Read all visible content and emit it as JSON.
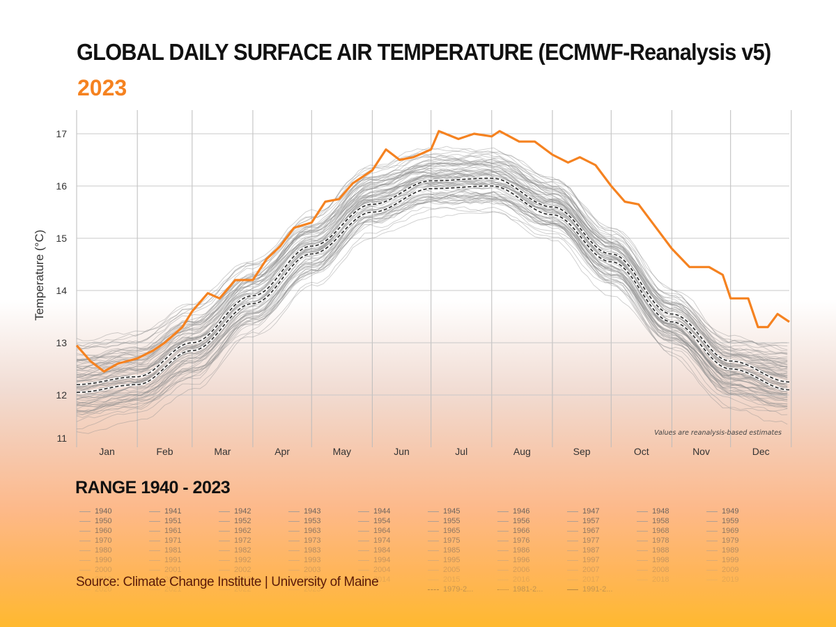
{
  "header": {
    "title": "GLOBAL DAILY SURFACE AIR TEMPERATURE (ECMWF-Reanalysis v5)",
    "subtitle": "2023"
  },
  "range_label": "RANGE 1940 - 2023",
  "source": "Source: Climate Change Institute  | University of Maine",
  "colors": {
    "highlight": "#f58220",
    "history": "#9a9a9a",
    "mean": "#222222"
  },
  "chart_data": {
    "type": "line",
    "ylabel": "Temperature (°C)",
    "xlabel": "",
    "ylim": [
      11,
      17.45
    ],
    "yticks": [
      11,
      12,
      13,
      14,
      15,
      16,
      17
    ],
    "xticks": [
      "Jan",
      "Feb",
      "Mar",
      "Apr",
      "May",
      "Jun",
      "Jul",
      "Aug",
      "Sep",
      "Oct",
      "Nov",
      "Dec"
    ],
    "grid": true,
    "annotation": "Values are reanalysis-based estimates",
    "series": [
      {
        "name": "2023",
        "color": "#f58220",
        "day": [
          1,
          8,
          15,
          22,
          32,
          40,
          46,
          55,
          60,
          68,
          74,
          82,
          91,
          98,
          105,
          112,
          121,
          128,
          135,
          142,
          152,
          159,
          166,
          173,
          182,
          186,
          196,
          204,
          213,
          217,
          227,
          235,
          244,
          252,
          258,
          266,
          274,
          281,
          288,
          296,
          305,
          314,
          324,
          331,
          335,
          344,
          349,
          354,
          359,
          365
        ],
        "values": [
          12.95,
          12.65,
          12.45,
          12.6,
          12.7,
          12.85,
          13.0,
          13.3,
          13.6,
          13.95,
          13.85,
          14.2,
          14.2,
          14.6,
          14.85,
          15.2,
          15.3,
          15.7,
          15.75,
          16.05,
          16.3,
          16.7,
          16.5,
          16.55,
          16.7,
          17.05,
          16.9,
          17.0,
          16.95,
          17.05,
          16.85,
          16.85,
          16.6,
          16.45,
          16.55,
          16.4,
          16.0,
          15.7,
          15.65,
          15.25,
          14.8,
          14.45,
          14.45,
          14.3,
          13.85,
          13.85,
          13.3,
          13.3,
          13.55,
          13.4
        ]
      },
      {
        "name": "1979-2...",
        "style": "dashed",
        "day": [
          1,
          32,
          60,
          91,
          121,
          152,
          182,
          213,
          244,
          274,
          305,
          335,
          365
        ],
        "values": [
          12.05,
          12.2,
          12.85,
          13.75,
          14.7,
          15.5,
          15.95,
          16.0,
          15.45,
          14.55,
          13.4,
          12.5,
          12.1
        ]
      },
      {
        "name": "1981-2...",
        "style": "dash-dot",
        "day": [
          1,
          32,
          60,
          91,
          121,
          152,
          182,
          213,
          244,
          274,
          305,
          335,
          365
        ],
        "values": [
          12.1,
          12.25,
          12.9,
          13.8,
          14.75,
          15.55,
          16.0,
          16.05,
          15.5,
          14.6,
          13.45,
          12.55,
          12.15
        ]
      },
      {
        "name": "1991-2...",
        "style": "dashed",
        "day": [
          1,
          32,
          60,
          91,
          121,
          152,
          182,
          213,
          244,
          274,
          305,
          335,
          365
        ],
        "values": [
          12.2,
          12.35,
          13.0,
          13.9,
          14.85,
          15.65,
          16.1,
          16.15,
          15.6,
          14.7,
          13.55,
          12.65,
          12.25
        ]
      }
    ],
    "history_years": {
      "first": 1940,
      "last": 2022,
      "envelope_day": [
        1,
        32,
        60,
        91,
        121,
        152,
        182,
        213,
        244,
        274,
        305,
        335,
        365
      ],
      "envelope_min": [
        11.2,
        11.4,
        12.0,
        13.0,
        14.0,
        15.0,
        15.4,
        15.4,
        14.9,
        13.9,
        12.7,
        11.7,
        11.4
      ],
      "envelope_max": [
        13.2,
        13.3,
        13.9,
        14.7,
        15.6,
        16.5,
        16.8,
        16.8,
        16.3,
        15.3,
        14.1,
        13.2,
        13.1
      ]
    }
  },
  "legend": {
    "years": [
      "1940",
      "1941",
      "1942",
      "1943",
      "1944",
      "1945",
      "1946",
      "1947",
      "1948",
      "1949",
      "1950",
      "1951",
      "1952",
      "1953",
      "1954",
      "1955",
      "1956",
      "1957",
      "1958",
      "1959",
      "1960",
      "1961",
      "1962",
      "1963",
      "1964",
      "1965",
      "1966",
      "1967",
      "1968",
      "1969",
      "1970",
      "1971",
      "1972",
      "1973",
      "1974",
      "1975",
      "1976",
      "1977",
      "1978",
      "1979",
      "1980",
      "1981",
      "1982",
      "1983",
      "1984",
      "1985",
      "1986",
      "1987",
      "1988",
      "1989",
      "1990",
      "1991",
      "1992",
      "1993",
      "1994",
      "1995",
      "1996",
      "1997",
      "1998",
      "1999",
      "2000",
      "2001",
      "2002",
      "2003",
      "2004",
      "2005",
      "2006",
      "2007",
      "2008",
      "2009",
      "2010",
      "2011",
      "2012",
      "2013",
      "2014",
      "2015",
      "2016",
      "2017",
      "2018",
      "2019",
      "2020",
      "2021",
      "2022",
      "2023"
    ],
    "means": [
      "1979-2...",
      "1981-2...",
      "1991-2..."
    ]
  }
}
